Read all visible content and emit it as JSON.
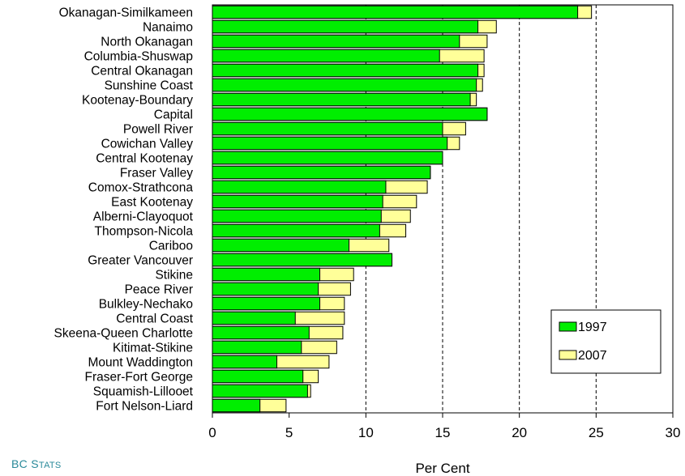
{
  "source": {
    "prefix": "BC S",
    "suffix": "TATS"
  },
  "chart_data": {
    "type": "bar",
    "orientation": "horizontal",
    "title": "",
    "xlabel": "Per Cent",
    "ylabel": "",
    "xlim": [
      0,
      30
    ],
    "xticks": [
      "0",
      "5",
      "10",
      "15",
      "20",
      "25",
      "30"
    ],
    "gridlines": "vertical dashed at 10, 15, 20, 25",
    "legend_position": "bottom-right",
    "categories": [
      "Okanagan-Similkameen",
      "Nanaimo",
      "North Okanagan",
      "Columbia-Shuswap",
      "Central Okanagan",
      "Sunshine Coast",
      "Kootenay-Boundary",
      "Capital",
      "Powell River",
      "Cowichan Valley",
      "Central Kootenay",
      "Fraser Valley",
      "Comox-Strathcona",
      "East Kootenay",
      "Alberni-Clayoquot",
      "Thompson-Nicola",
      "Cariboo",
      "Greater Vancouver",
      "Stikine",
      "Peace River",
      "Bulkley-Nechako",
      "Central Coast",
      "Skeena-Queen Charlotte",
      "Kitimat-Stikine",
      "Mount Waddington",
      "Fraser-Fort George",
      "Squamish-Lillooet",
      "Fort Nelson-Liard"
    ],
    "series": [
      {
        "name": "1997",
        "color": "#00ee00",
        "values": [
          23.8,
          17.3,
          16.1,
          14.8,
          17.3,
          17.2,
          16.8,
          17.9,
          15.0,
          15.3,
          15.0,
          14.2,
          11.3,
          11.1,
          11.0,
          10.9,
          8.9,
          11.7,
          7.0,
          6.9,
          7.0,
          5.4,
          6.3,
          5.8,
          4.2,
          5.9,
          6.2,
          3.1
        ]
      },
      {
        "name": "2007",
        "color": "#ffff99",
        "values": [
          24.7,
          18.5,
          17.9,
          17.7,
          17.7,
          17.6,
          17.2,
          17.9,
          16.5,
          16.1,
          15.0,
          14.2,
          14.0,
          13.3,
          12.9,
          12.6,
          11.5,
          11.7,
          9.2,
          9.0,
          8.6,
          8.6,
          8.5,
          8.1,
          7.6,
          6.9,
          6.4,
          4.8
        ]
      }
    ]
  }
}
